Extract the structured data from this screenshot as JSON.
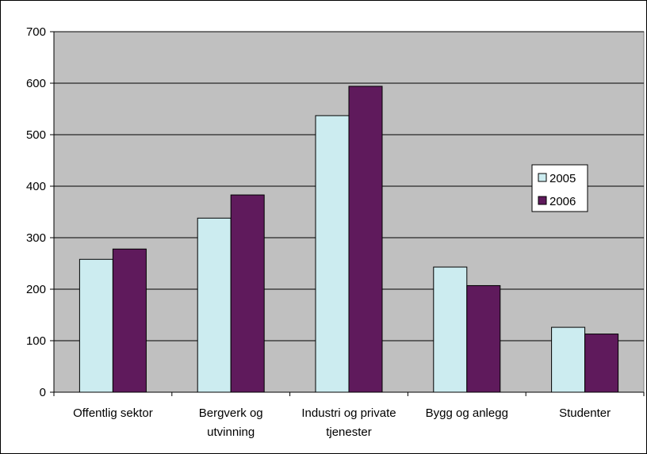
{
  "chart_data": {
    "type": "bar",
    "title": "",
    "xlabel": "",
    "ylabel": "",
    "ylim": [
      0,
      700
    ],
    "yticks": [
      0,
      100,
      200,
      300,
      400,
      500,
      600,
      700
    ],
    "grid": true,
    "legend_position": "right",
    "categories": [
      [
        "Offentlig sektor"
      ],
      [
        "Bergverk og",
        "utvinning"
      ],
      [
        "Industri og private",
        "tjenester"
      ],
      [
        "Bygg og anlegg"
      ],
      [
        "Studenter"
      ]
    ],
    "series": [
      {
        "name": "2005",
        "color": "#CCECF0",
        "values": [
          258,
          338,
          537,
          243,
          126
        ]
      },
      {
        "name": "2006",
        "color": "#5F1A5C",
        "values": [
          278,
          383,
          594,
          207,
          113
        ]
      }
    ],
    "plot_background": "#C0C0C0"
  }
}
